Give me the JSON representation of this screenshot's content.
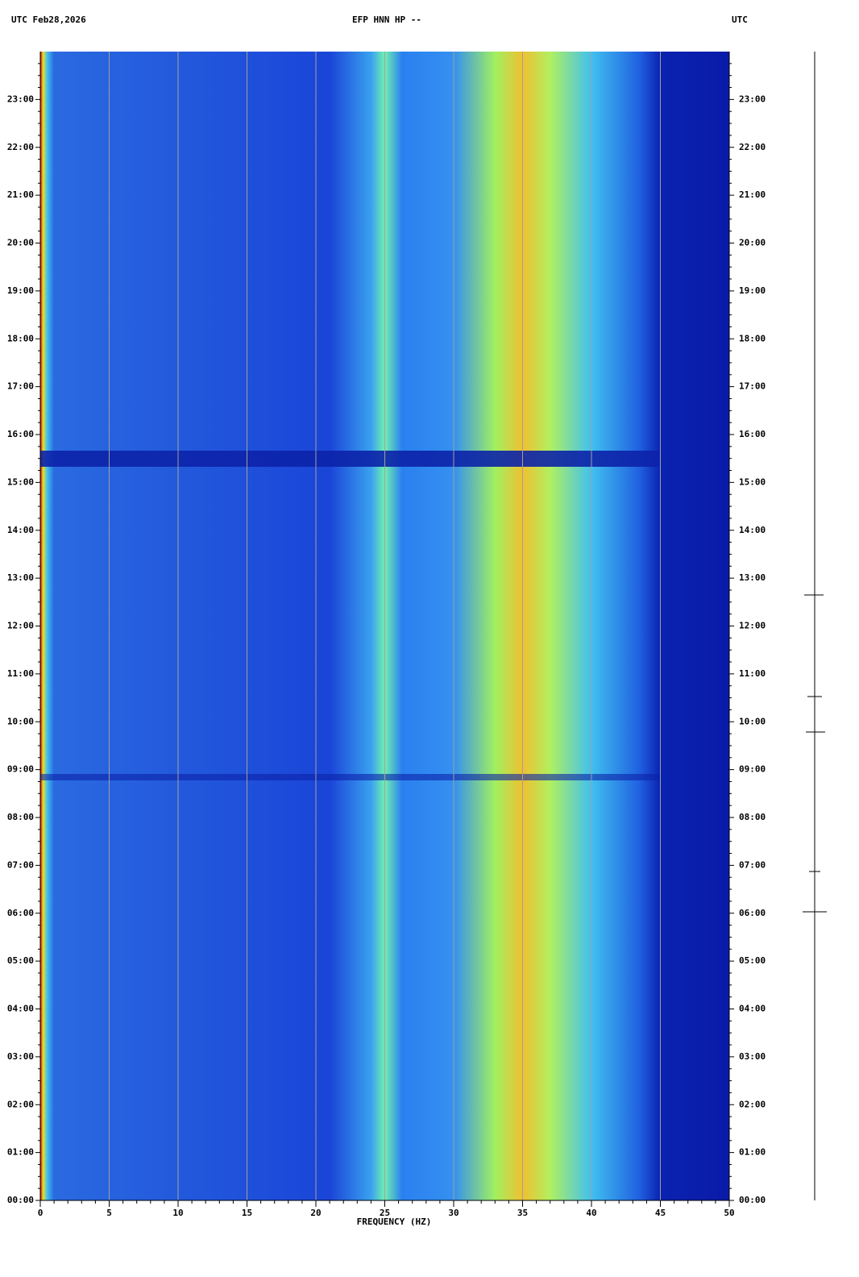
{
  "chart_data": {
    "type": "spectrogram",
    "title": "EFP HNN HP --",
    "top_left": "UTC  Feb28,2026",
    "top_right": "UTC",
    "x_label": "FREQUENCY (HZ)",
    "xlim": [
      0,
      50
    ],
    "xticks": [
      0,
      5,
      10,
      15,
      20,
      25,
      30,
      35,
      40,
      45,
      50
    ],
    "xminorticks": [
      1,
      2,
      3,
      4,
      6,
      7,
      8,
      9,
      11,
      12,
      13,
      14,
      16,
      17,
      18,
      19,
      21,
      22,
      23,
      24,
      26,
      27,
      28,
      29,
      31,
      32,
      33,
      34,
      36,
      37,
      38,
      39,
      41,
      42,
      43,
      44,
      46,
      47,
      48,
      49
    ],
    "ylim": [
      0,
      24
    ],
    "yticks": [
      {
        "value": 0,
        "label": "00:00"
      },
      {
        "value": 1,
        "label": "01:00"
      },
      {
        "value": 2,
        "label": "02:00"
      },
      {
        "value": 3,
        "label": "03:00"
      },
      {
        "value": 4,
        "label": "04:00"
      },
      {
        "value": 5,
        "label": "05:00"
      },
      {
        "value": 6,
        "label": "06:00"
      },
      {
        "value": 7,
        "label": "07:00"
      },
      {
        "value": 8,
        "label": "08:00"
      },
      {
        "value": 9,
        "label": "09:00"
      },
      {
        "value": 10,
        "label": "10:00"
      },
      {
        "value": 11,
        "label": "11:00"
      },
      {
        "value": 12,
        "label": "12:00"
      },
      {
        "value": 13,
        "label": "13:00"
      },
      {
        "value": 14,
        "label": "14:00"
      },
      {
        "value": 15,
        "label": "15:00"
      },
      {
        "value": 16,
        "label": "16:00"
      },
      {
        "value": 17,
        "label": "17:00"
      },
      {
        "value": 18,
        "label": "18:00"
      },
      {
        "value": 19,
        "label": "19:00"
      },
      {
        "value": 20,
        "label": "20:00"
      },
      {
        "value": 21,
        "label": "21:00"
      },
      {
        "value": 22,
        "label": "22:00"
      },
      {
        "value": 23,
        "label": "23:00"
      }
    ],
    "grid": true
  }
}
